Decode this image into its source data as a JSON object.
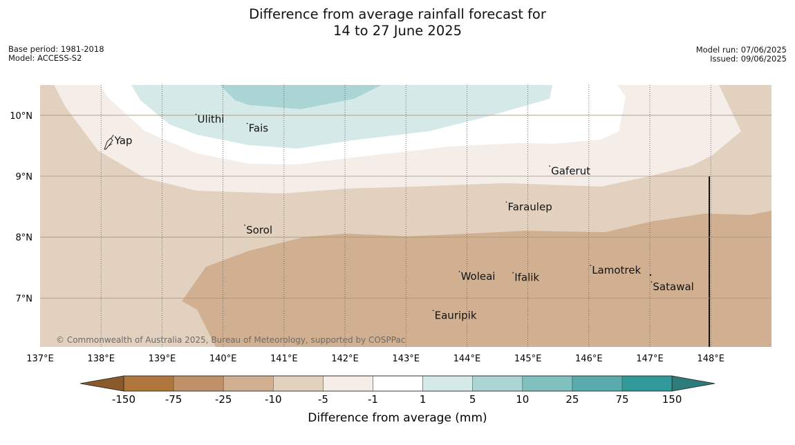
{
  "title": {
    "line1": "Difference from average rainfall forecast for",
    "line2": "14 to 27 June 2025"
  },
  "meta_left": {
    "base_period": "Base period: 1981-2018",
    "model": "Model: ACCESS-S2"
  },
  "meta_right": {
    "model_run": "Model run: 07/06/2025",
    "issued": "Issued: 09/06/2025"
  },
  "map": {
    "lat_labels": [
      "10°N",
      "9°N",
      "8°N",
      "7°N"
    ],
    "lon_labels": [
      "137°E",
      "138°E",
      "139°E",
      "140°E",
      "141°E",
      "142°E",
      "143°E",
      "144°E",
      "145°E",
      "146°E",
      "147°E",
      "148°E"
    ],
    "places": [
      {
        "name": "Yap",
        "lon": 138.22,
        "lat": 9.53
      },
      {
        "name": "Ulithi",
        "lon": 139.58,
        "lat": 9.88
      },
      {
        "name": "Fais",
        "lon": 140.42,
        "lat": 9.73
      },
      {
        "name": "Gaferut",
        "lon": 145.38,
        "lat": 9.03
      },
      {
        "name": "Faraulep",
        "lon": 144.67,
        "lat": 8.44
      },
      {
        "name": "Sorol",
        "lon": 140.38,
        "lat": 8.06
      },
      {
        "name": "Woleai",
        "lon": 143.9,
        "lat": 7.3
      },
      {
        "name": "Ifalik",
        "lon": 144.78,
        "lat": 7.28
      },
      {
        "name": "Lamotrek",
        "lon": 146.05,
        "lat": 7.4
      },
      {
        "name": "Satawal",
        "lon": 147.05,
        "lat": 7.13
      },
      {
        "name": "Eauripik",
        "lon": 143.47,
        "lat": 6.66
      }
    ],
    "copyright": "© Commonwealth of Australia 2025, Bureau of Meteorology, supported by COSPPac"
  },
  "colorbar": {
    "ticks": [
      "-150",
      "-75",
      "-25",
      "-10",
      "-5",
      "-1",
      "1",
      "5",
      "10",
      "25",
      "75",
      "150"
    ],
    "colors": [
      "#b0773d",
      "#c09066",
      "#d1b091",
      "#e3d1c0",
      "#f5ede8",
      "#ffffff",
      "#d5e9e8",
      "#abd5d5",
      "#80c0bf",
      "#59acab",
      "#32999a"
    ],
    "under_color": "#8b5a2b",
    "over_color": "#2e7b7b",
    "label": "Difference from average (mm)"
  }
}
